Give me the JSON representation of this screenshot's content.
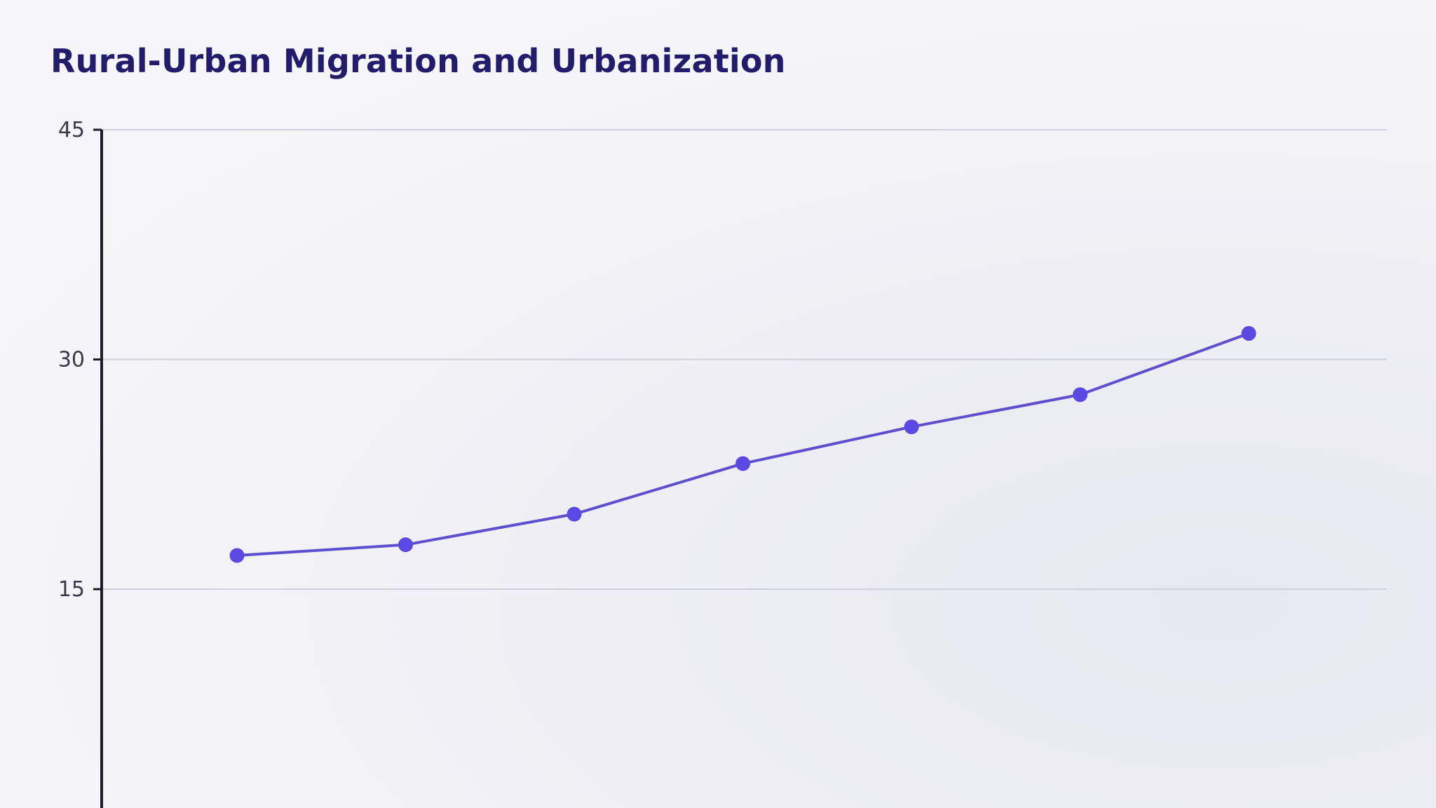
{
  "chart_data": {
    "type": "line",
    "title": "Rural-Urban Migration and Urbanization",
    "xlabel": "",
    "ylabel": "",
    "ylim": [
      0,
      45
    ],
    "yticks": [
      15,
      30,
      45
    ],
    "grid": true,
    "series": [
      {
        "values": [
          17.2,
          17.9,
          19.9,
          23.2,
          25.6,
          27.7,
          31.7
        ]
      }
    ],
    "colors": {
      "title": "#231b6b",
      "line": "#5f4fcf",
      "marker": "#5c48e3",
      "axis": "#1d1d29",
      "grid": "#d0d0da"
    }
  }
}
